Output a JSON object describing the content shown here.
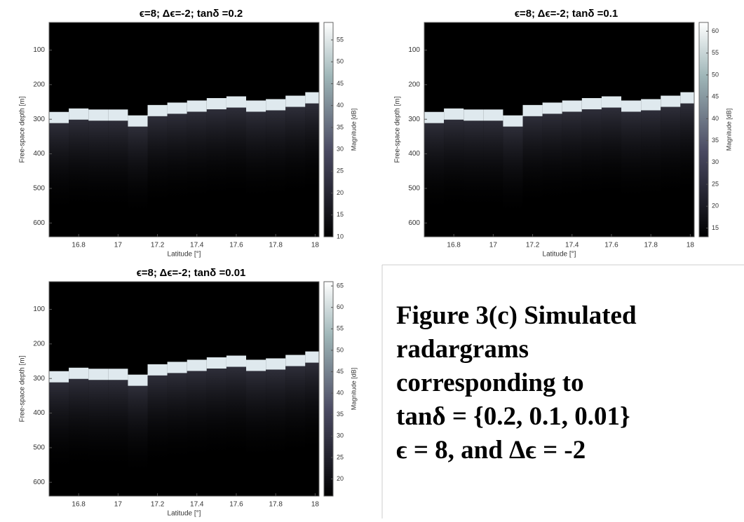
{
  "chart_data": [
    {
      "type": "heatmap",
      "title": "ϵ=8; Δϵ=-2; tanδ =0.2",
      "xlabel": "Latitude [°]",
      "ylabel": "Free-space depth [m]",
      "clabel": "Magnitude [dB]",
      "xlim": [
        16.65,
        18.02
      ],
      "xticks": [
        16.8,
        17,
        17.2,
        17.4,
        17.6,
        17.8,
        18
      ],
      "ylim": [
        640,
        20
      ],
      "yticks": [
        100,
        200,
        300,
        400,
        500,
        600
      ],
      "clim": [
        10,
        59
      ],
      "cticks": [
        10,
        15,
        20,
        25,
        30,
        35,
        40,
        45,
        50,
        55
      ],
      "x": [
        16.65,
        16.75,
        16.85,
        16.95,
        17.05,
        17.15,
        17.25,
        17.35,
        17.45,
        17.55,
        17.65,
        17.75,
        17.85,
        17.95
      ],
      "values": [
        295,
        285,
        288,
        288,
        305,
        275,
        268,
        262,
        255,
        250,
        262,
        258,
        248,
        238
      ]
    },
    {
      "type": "heatmap",
      "title": "ϵ=8; Δϵ=-2; tanδ =0.1",
      "xlabel": "Latitude [°]",
      "ylabel": "Free-space depth [m]",
      "clabel": "Magnitude [dB]",
      "xlim": [
        16.65,
        18.02
      ],
      "xticks": [
        16.8,
        17,
        17.2,
        17.4,
        17.6,
        17.8,
        18
      ],
      "ylim": [
        640,
        20
      ],
      "yticks": [
        100,
        200,
        300,
        400,
        500,
        600
      ],
      "clim": [
        13,
        62
      ],
      "cticks": [
        15,
        20,
        25,
        30,
        35,
        40,
        45,
        50,
        55,
        60
      ],
      "x": [
        16.65,
        16.75,
        16.85,
        16.95,
        17.05,
        17.15,
        17.25,
        17.35,
        17.45,
        17.55,
        17.65,
        17.75,
        17.85,
        17.95
      ],
      "values": [
        295,
        285,
        288,
        288,
        305,
        275,
        268,
        262,
        255,
        250,
        262,
        258,
        248,
        238
      ]
    },
    {
      "type": "heatmap",
      "title": "ϵ=8; Δϵ=-2; tanδ =0.01",
      "xlabel": "Latitude [°]",
      "ylabel": "Free-space depth [m]",
      "clabel": "Magnitude [dB]",
      "xlim": [
        16.65,
        18.02
      ],
      "xticks": [
        16.8,
        17,
        17.2,
        17.4,
        17.6,
        17.8,
        18
      ],
      "ylim": [
        640,
        20
      ],
      "yticks": [
        100,
        200,
        300,
        400,
        500,
        600
      ],
      "clim": [
        16,
        66
      ],
      "cticks": [
        20,
        25,
        30,
        35,
        40,
        45,
        50,
        55,
        60,
        65
      ],
      "x": [
        16.65,
        16.75,
        16.85,
        16.95,
        17.05,
        17.15,
        17.25,
        17.35,
        17.45,
        17.55,
        17.65,
        17.75,
        17.85,
        17.95
      ],
      "values": [
        295,
        285,
        288,
        288,
        305,
        275,
        268,
        262,
        255,
        250,
        262,
        258,
        248,
        238
      ]
    }
  ],
  "caption": [
    "Figure 3(c) Simulated",
    "radargrams",
    "corresponding to",
    "tanδ = {0.2, 0.1, 0.01}",
    "ϵ = 8, and Δϵ = -2"
  ]
}
